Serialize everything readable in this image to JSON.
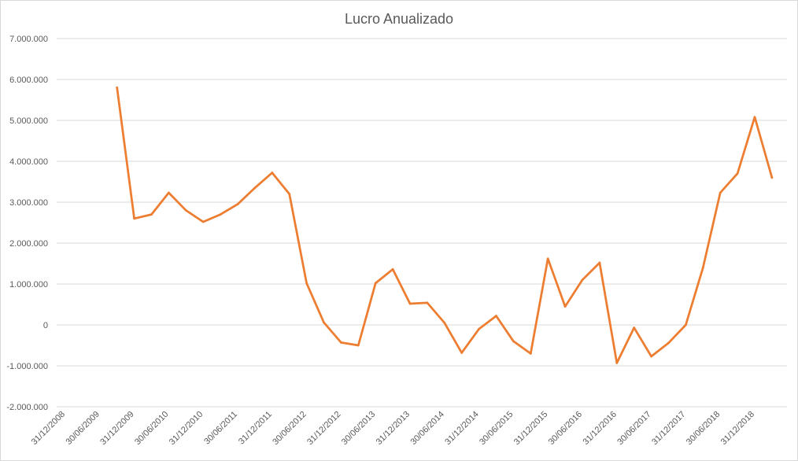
{
  "chart_data": {
    "type": "line",
    "title": "Lucro Anualizado",
    "xlabel": "",
    "ylabel": "",
    "ylim": [
      -2000000,
      7000000
    ],
    "y_ticks": [
      -2000000,
      -1000000,
      0,
      1000000,
      2000000,
      3000000,
      4000000,
      5000000,
      6000000,
      7000000
    ],
    "y_tick_labels": [
      "-2.000.000",
      "-1.000.000",
      "0",
      "1.000.000",
      "2.000.000",
      "3.000.000",
      "4.000.000",
      "5.000.000",
      "6.000.000",
      "7.000.000"
    ],
    "x_tick_labels": [
      "31/12/2008",
      "30/06/2009",
      "31/12/2009",
      "30/06/2010",
      "31/12/2010",
      "30/06/2011",
      "31/12/2011",
      "30/06/2012",
      "31/12/2012",
      "30/06/2013",
      "31/12/2013",
      "30/06/2014",
      "31/12/2014",
      "30/06/2015",
      "31/12/2015",
      "30/06/2016",
      "31/12/2016",
      "30/06/2017",
      "31/12/2017",
      "30/06/2018",
      "31/12/2018"
    ],
    "grid": true,
    "legend": "none",
    "line_color": "#ED7D31",
    "series": [
      {
        "x": [
          "30/09/2009",
          "31/12/2009",
          "31/03/2010",
          "30/06/2010",
          "30/09/2010",
          "31/12/2010",
          "31/03/2011",
          "30/06/2011",
          "30/09/2011",
          "31/12/2011",
          "31/03/2012",
          "30/06/2012",
          "30/09/2012",
          "31/12/2012",
          "31/03/2013",
          "30/06/2013",
          "30/09/2013",
          "31/12/2013",
          "31/03/2014",
          "30/06/2014",
          "30/09/2014",
          "31/12/2014",
          "31/03/2015",
          "30/06/2015",
          "30/09/2015",
          "31/12/2015",
          "31/03/2016",
          "30/06/2016",
          "30/09/2016",
          "31/12/2016",
          "31/03/2017",
          "30/06/2017",
          "30/09/2017",
          "31/12/2017",
          "31/03/2018",
          "30/06/2018",
          "30/09/2018",
          "31/12/2018",
          "31/03/2019"
        ],
        "values": [
          5800000,
          2600000,
          2700000,
          3230000,
          2800000,
          2520000,
          2700000,
          2950000,
          3350000,
          3720000,
          3200000,
          1020000,
          60000,
          -430000,
          -500000,
          1020000,
          1360000,
          520000,
          540000,
          50000,
          -680000,
          -100000,
          220000,
          -400000,
          -700000,
          1620000,
          450000,
          1100000,
          1520000,
          -930000,
          -70000,
          -770000,
          -440000,
          0,
          1400000,
          3230000,
          3700000,
          5080000,
          3600000
        ]
      }
    ]
  }
}
